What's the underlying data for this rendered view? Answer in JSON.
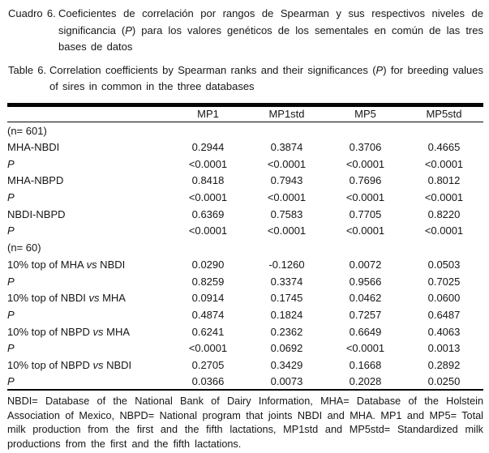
{
  "captions": {
    "es": {
      "label": "Cuadro 6.",
      "text1": "Coeficientes de correlación por rangos de Spearman y sus respectivos niveles de significancia (",
      "p": "P",
      "text2": ") para los valores genéticos de los sementales en común de las tres bases de datos"
    },
    "en": {
      "label": "Table 6.",
      "text1": "Correlation coefficients by Spearman ranks and their significances (",
      "p": "P",
      "text2": ") for breeding values of sires in common in the three databases"
    }
  },
  "table": {
    "columns": [
      "MP1",
      "MP1std",
      "MP5",
      "MP5std"
    ],
    "rows": [
      {
        "type": "section",
        "label": "(n= 601)"
      },
      {
        "type": "data",
        "label": "MHA-NBDI",
        "values": [
          "0.2944",
          "0.3874",
          "0.3706",
          "0.4665"
        ]
      },
      {
        "type": "p",
        "label": "P",
        "values": [
          "<0.0001",
          "<0.0001",
          "<0.0001",
          "<0.0001"
        ]
      },
      {
        "type": "data",
        "label": "MHA-NBPD",
        "values": [
          "0.8418",
          "0.7943",
          "0.7696",
          "0.8012"
        ]
      },
      {
        "type": "p",
        "label": "P",
        "values": [
          "<0.0001",
          "<0.0001",
          "<0.0001",
          "<0.0001"
        ]
      },
      {
        "type": "data",
        "label": "NBDI-NBPD",
        "values": [
          "0.6369",
          "0.7583",
          "0.7705",
          "0.8220"
        ]
      },
      {
        "type": "p",
        "label": "P",
        "values": [
          "<0.0001",
          "<0.0001",
          "<0.0001",
          "<0.0001"
        ]
      },
      {
        "type": "section",
        "label": "(n= 60)"
      },
      {
        "type": "data-vs",
        "label_pre": "10% top of MHA ",
        "label_vs": "vs",
        "label_post": " NBDI",
        "values": [
          "0.0290",
          "-0.1260",
          "0.0072",
          "0.0503"
        ]
      },
      {
        "type": "p",
        "label": "P",
        "values": [
          "0.8259",
          "0.3374",
          "0.9566",
          "0.7025"
        ]
      },
      {
        "type": "data-vs",
        "label_pre": "10% top of NBDI ",
        "label_vs": "vs",
        "label_post": " MHA",
        "values": [
          "0.0914",
          "0.1745",
          "0.0462",
          "0.0600"
        ]
      },
      {
        "type": "p",
        "label": "P",
        "values": [
          "0.4874",
          "0.1824",
          "0.7257",
          "0.6487"
        ]
      },
      {
        "type": "data-vs",
        "label_pre": "10% top of NBPD ",
        "label_vs": "vs",
        "label_post": " MHA",
        "values": [
          "0.6241",
          "0.2362",
          "0.6649",
          "0.4063"
        ]
      },
      {
        "type": "p",
        "label": "P",
        "values": [
          "<0.0001",
          "0.0692",
          "<0.0001",
          "0.0013"
        ]
      },
      {
        "type": "data-vs",
        "label_pre": "10% top of NBPD ",
        "label_vs": "vs",
        "label_post": " NBDI",
        "values": [
          "0.2705",
          "0.3429",
          "0.1668",
          "0.2892"
        ]
      },
      {
        "type": "p",
        "label": "P",
        "values": [
          "0.0366",
          "0.0073",
          "0.2028",
          "0.0250"
        ]
      }
    ]
  },
  "footnote": "NBDI= Database of the National Bank of Dairy Information, MHA= Database of the Holstein Association of Mexico, NBPD= National program that joints NBDI and MHA. MP1 and MP5= Total milk production from the first and the fifth lactations, MP1std and MP5std= Standardized milk productions from the first and the fifth lactations."
}
